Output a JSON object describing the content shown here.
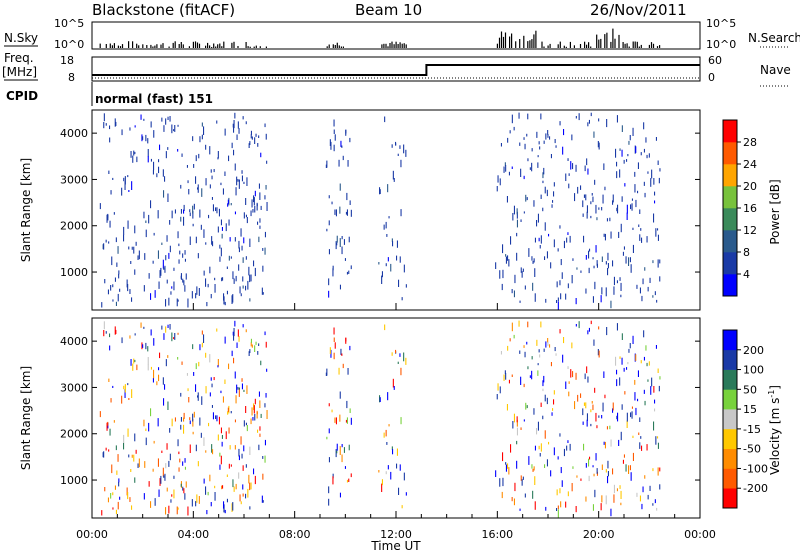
{
  "header": {
    "station": "Blackstone (fitACF)",
    "beam": "Beam 10",
    "date": "26/Nov/2011"
  },
  "labels": {
    "nsky": "N.Sky",
    "nsearch": "N.Search",
    "freq_top": "Freq.",
    "freq_unit": "[MHz]",
    "nave": "Nave",
    "cpid": "CPID",
    "cpid_value": "normal (fast) 151",
    "slant_range": "Slant Range [km]",
    "time_axis": "Time UT",
    "power_label": "Power [dB]",
    "velocity_label": "Velocity [m s",
    "velocity_exp": "-1",
    "velocity_close": "]"
  },
  "colors": {
    "power_scale": [
      "#0000ff",
      "#1a3aa6",
      "#2a5a8c",
      "#3a8a5a",
      "#78c23c",
      "#ffa500",
      "#ff5a00",
      "#ff0000"
    ],
    "velocity_scale": [
      "#ff0000",
      "#ff5a00",
      "#ff8c00",
      "#ffc800",
      "#c8c8c8",
      "#78d23c",
      "#2a7a5a",
      "#1a3aa6",
      "#0000ff"
    ]
  },
  "chart_data": [
    {
      "type": "bar",
      "name": "N.Sky / N.Search",
      "yticks": [
        "10^5",
        "10^0"
      ],
      "yticks_right": [
        "10^5",
        "10^0"
      ],
      "xlim": [
        0,
        24
      ],
      "active_windows": [
        [
          0.3,
          6.9
        ],
        [
          9.2,
          10.2
        ],
        [
          11.3,
          12.4
        ],
        [
          15.9,
          22.4
        ]
      ],
      "high_windows": [
        [
          16.0,
          17.6
        ],
        [
          19.8,
          20.9
        ]
      ]
    },
    {
      "type": "line",
      "name": "Freq. / Nave",
      "yticks_left": [
        "18",
        "8"
      ],
      "yticks_right": [
        "60",
        "0"
      ],
      "freq_mhz": {
        "x": [
          0,
          13.2,
          13.2,
          24
        ],
        "y": [
          10.5,
          10.5,
          15.5,
          15.5
        ]
      },
      "nave": {
        "x": [
          0,
          24
        ],
        "y": [
          9,
          9
        ]
      }
    },
    {
      "type": "heatmap",
      "name": "Power",
      "ylabel": "Slant Range [km]",
      "ylim": [
        180,
        4500
      ],
      "yticks": [
        1000,
        2000,
        3000,
        4000
      ],
      "xlim": [
        0,
        24
      ],
      "colorbar_ticks": [
        "28",
        "24",
        "20",
        "16",
        "12",
        "8",
        "4"
      ],
      "colorbar_label": "Power [dB]",
      "scatter_windows": [
        [
          0.3,
          6.9,
          0.55
        ],
        [
          9.2,
          10.2,
          0.45
        ],
        [
          11.3,
          12.4,
          0.25
        ],
        [
          15.9,
          22.4,
          0.5
        ]
      ]
    },
    {
      "type": "heatmap",
      "name": "Velocity",
      "ylabel": "Slant Range [km]",
      "ylim": [
        180,
        4500
      ],
      "yticks": [
        1000,
        2000,
        3000,
        4000
      ],
      "xlim": [
        0,
        24
      ],
      "xticks": [
        "00:00",
        "04:00",
        "08:00",
        "12:00",
        "16:00",
        "20:00",
        "00:00"
      ],
      "xlabel": "Time UT",
      "colorbar_ticks": [
        "200",
        "100",
        "50",
        "15",
        "-15",
        "-50",
        "-100",
        "-200"
      ],
      "colorbar_label": "Velocity [m s-1]"
    }
  ]
}
